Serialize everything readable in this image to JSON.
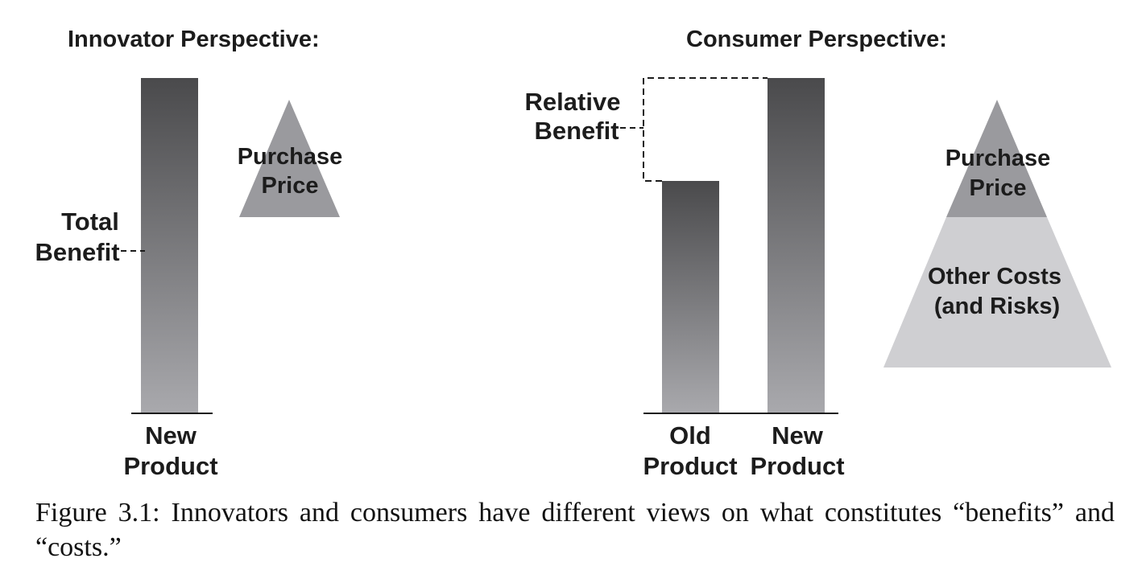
{
  "innovator": {
    "heading": "Innovator Perspective:",
    "benefit_label_line1": "Total",
    "benefit_label_line2": "Benefit",
    "price_line1": "Purchase",
    "price_line2": "Price",
    "axis_label_line1": "New",
    "axis_label_line2": "Product"
  },
  "consumer": {
    "heading": "Consumer Perspective:",
    "relative_label_line1": "Relative",
    "relative_label_line2": "Benefit",
    "old_label_line1": "Old",
    "old_label_line2": "Product",
    "new_label_line1": "New",
    "new_label_line2": "Product",
    "price_line1": "Purchase",
    "price_line2": "Price",
    "other_line1": "Other Costs",
    "other_line2": "(and Risks)"
  },
  "colors": {
    "bar_top": "#4a4a4c",
    "bar_bottom": "#a9a9ad",
    "triangle_dark": "#9a9a9e",
    "triangle_light": "#cfcfd2",
    "line": "#1c1c1c"
  },
  "caption": "Figure 3.1: Innovators and consumers have different views on what constitutes “benefits” and “costs.”"
}
